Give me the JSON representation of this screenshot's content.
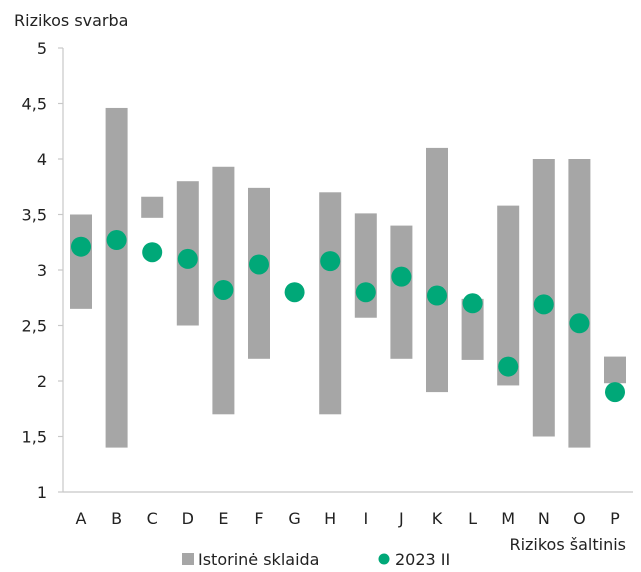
{
  "chart_data": {
    "type": "bar",
    "ylabel": "Rizikos svarba",
    "xlabel": "Rizikos šaltinis",
    "ylim": [
      1,
      5
    ],
    "yticks": [
      "1",
      "1,5",
      "2",
      "2,5",
      "3",
      "3,5",
      "4",
      "4,5",
      "5"
    ],
    "ytick_values": [
      1,
      1.5,
      2,
      2.5,
      3,
      3.5,
      4,
      4.5,
      5
    ],
    "categories": [
      "A",
      "B",
      "C",
      "D",
      "E",
      "F",
      "G",
      "H",
      "I",
      "J",
      "K",
      "L",
      "M",
      "N",
      "O",
      "P"
    ],
    "series": [
      {
        "name": "Istorinė sklaida",
        "type": "range-bar",
        "color": "#a6a6a6",
        "low": [
          2.65,
          1.4,
          3.47,
          2.5,
          1.7,
          2.2,
          null,
          1.7,
          2.57,
          2.2,
          1.9,
          2.19,
          1.96,
          1.5,
          1.4,
          1.98
        ],
        "high": [
          3.5,
          4.46,
          3.66,
          3.8,
          3.93,
          3.74,
          null,
          3.7,
          3.51,
          3.4,
          4.1,
          2.74,
          3.58,
          4.0,
          4.0,
          2.22
        ]
      },
      {
        "name": "2023 II",
        "type": "scatter",
        "color": "#00a878",
        "values": [
          3.21,
          3.27,
          3.16,
          3.1,
          2.82,
          3.05,
          2.8,
          3.08,
          2.8,
          2.94,
          2.77,
          2.7,
          2.13,
          2.69,
          2.52,
          1.9
        ]
      }
    ],
    "legend": "bottom",
    "grid": false
  }
}
